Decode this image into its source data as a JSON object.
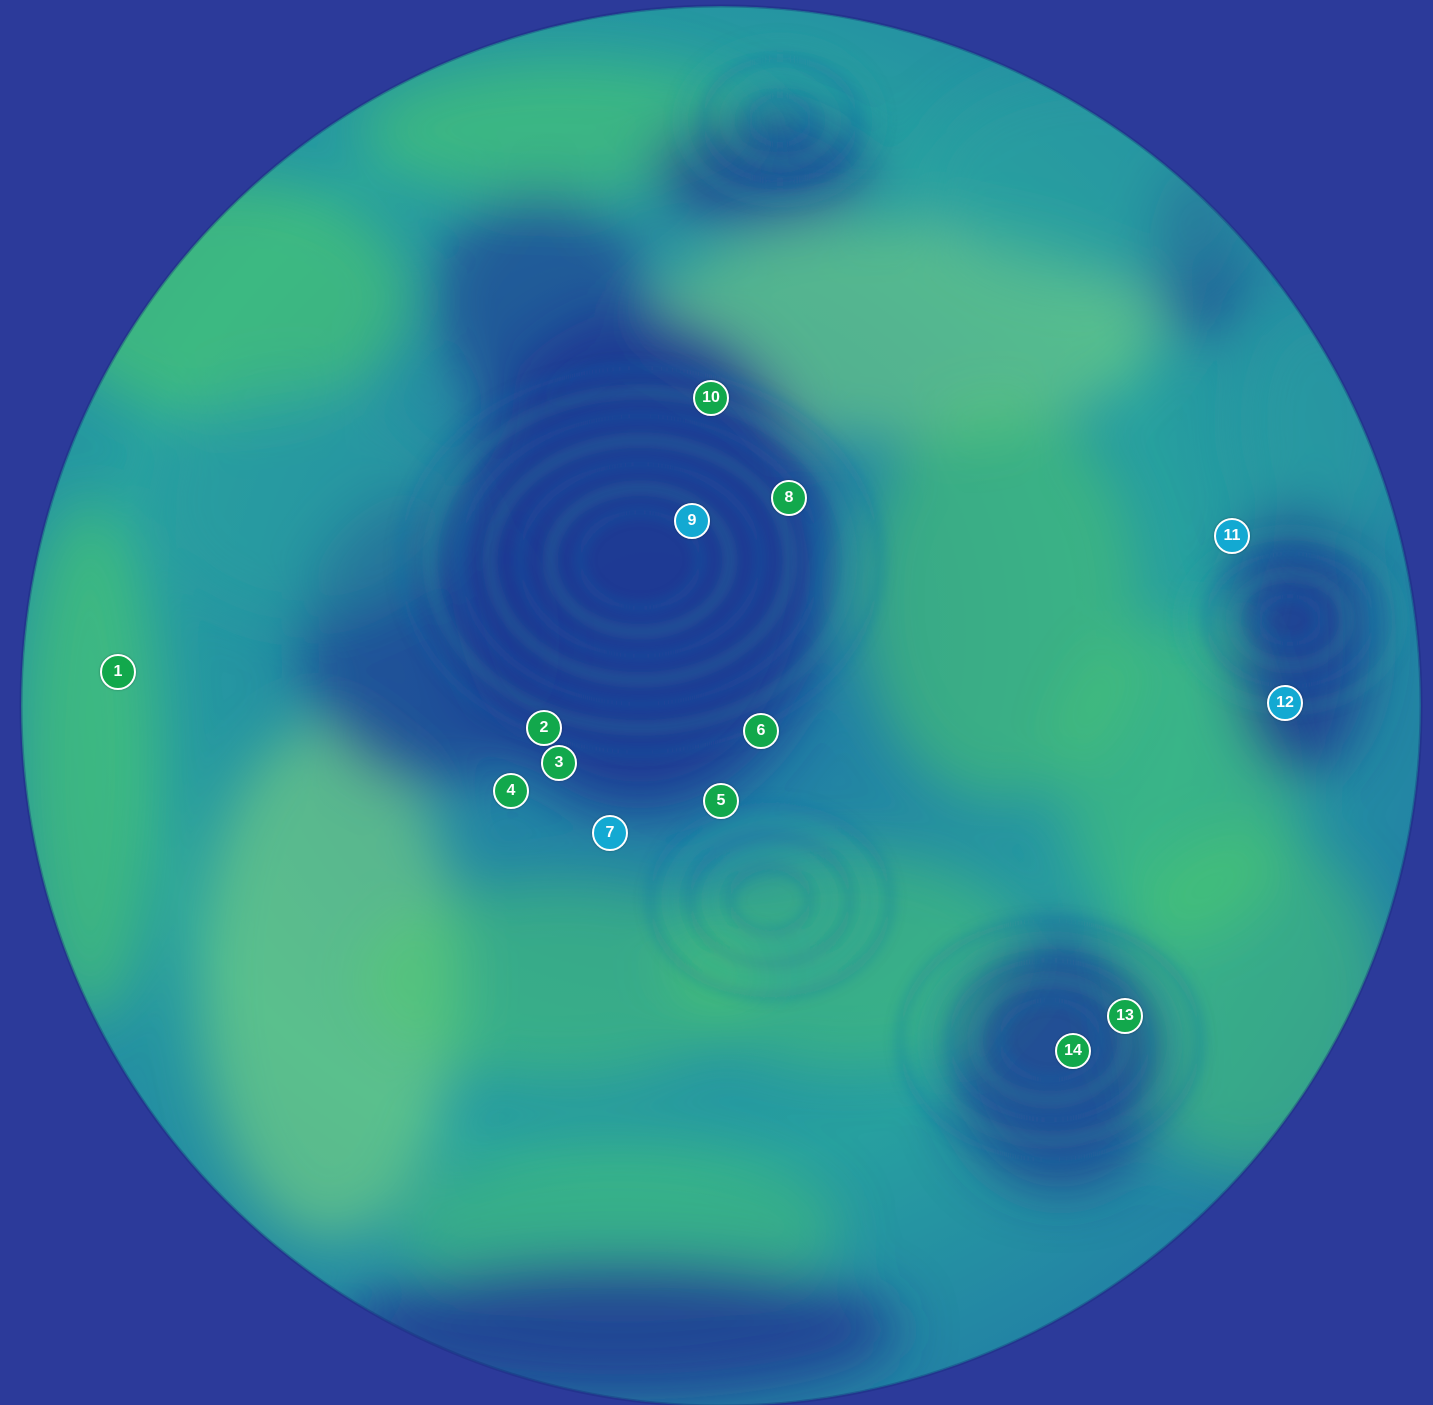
{
  "map": {
    "background_color": "#2c3a9a",
    "globe_colors": {
      "deep": "#1f3592",
      "mid": "#1f6fa8",
      "teal": "#27a0a0",
      "bright": "#4fce6a",
      "lime": "#8ee07a"
    },
    "marker_colors": {
      "green": "#12a84c",
      "cyan": "#13a9d2"
    },
    "markers": [
      {
        "label": "1",
        "color": "green"
      },
      {
        "label": "2",
        "color": "green"
      },
      {
        "label": "3",
        "color": "green"
      },
      {
        "label": "4",
        "color": "green"
      },
      {
        "label": "5",
        "color": "green"
      },
      {
        "label": "6",
        "color": "green"
      },
      {
        "label": "7",
        "color": "cyan"
      },
      {
        "label": "8",
        "color": "green"
      },
      {
        "label": "9",
        "color": "cyan"
      },
      {
        "label": "10",
        "color": "green"
      },
      {
        "label": "11",
        "color": "cyan"
      },
      {
        "label": "12",
        "color": "cyan"
      },
      {
        "label": "13",
        "color": "green"
      },
      {
        "label": "14",
        "color": "green"
      }
    ]
  }
}
